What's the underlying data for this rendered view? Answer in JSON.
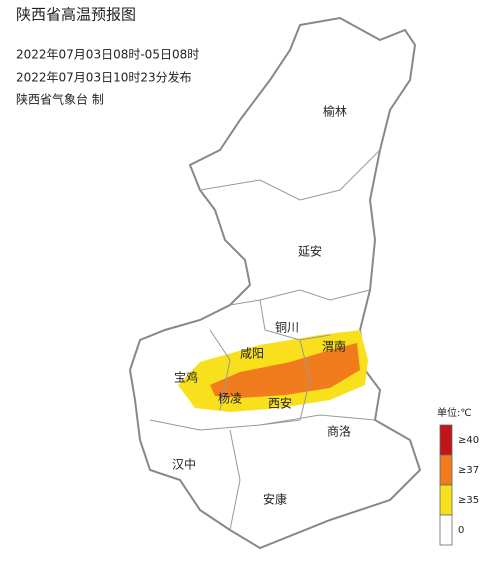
{
  "header": {
    "title": "陕西省高温预报图",
    "period": "2022年07月03日08时-05日08时",
    "issued": "2022年07月03日10时23分发布",
    "publisher": "陕西省气象台 制"
  },
  "cities": [
    "榆林",
    "延安",
    "铜川",
    "渭南",
    "咸阳",
    "宝鸡",
    "杨凌",
    "西安",
    "商洛",
    "汉中",
    "安康"
  ],
  "legend": {
    "unit": "单位:℃",
    "items": [
      {
        "label": "≥40",
        "color": "#c0151b"
      },
      {
        "label": "≥37",
        "color": "#f07c1e"
      },
      {
        "label": "≥35",
        "color": "#f8e01c"
      },
      {
        "label": "0",
        "color": "#ffffff"
      }
    ]
  }
}
